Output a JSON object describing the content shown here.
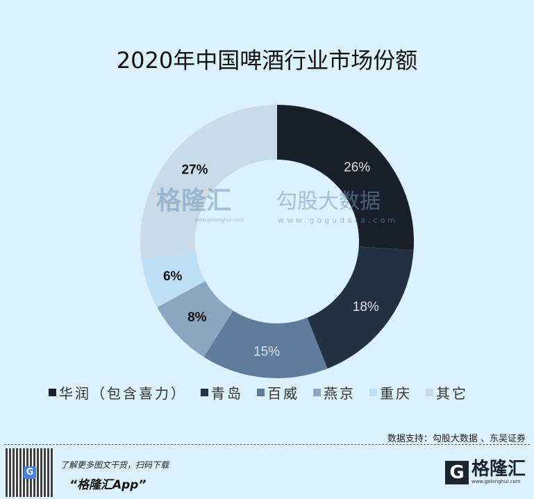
{
  "title": "2020年中国啤酒行业市场份额",
  "chart_data": {
    "type": "pie",
    "donut": true,
    "title": "2020年中国啤酒行业市场份额",
    "categories": [
      "华润（包含喜力）",
      "青岛",
      "百威",
      "燕京",
      "重庆",
      "其它"
    ],
    "values": [
      26,
      18,
      15,
      8,
      6,
      27
    ],
    "labels": [
      "26%",
      "18%",
      "15%",
      "8%",
      "6%",
      "27%"
    ],
    "colors": [
      "#17202b",
      "#243142",
      "#5f7c9c",
      "#8ca5c0",
      "#bde0f8",
      "#c8dbe6"
    ],
    "label_colors": [
      "#d8e2ec",
      "#d8e2ec",
      "#d8e2ec",
      "#111111",
      "#111111",
      "#111111"
    ],
    "legend_position": "bottom"
  },
  "watermark": {
    "brand1": "格隆汇",
    "url1": "www.gelonghui.com",
    "brand2": "勾股大数据",
    "url2": "www.gogudata.com"
  },
  "footer": {
    "source": "数据支持：勾股大数据 、东吴证券",
    "promo_line1": "了解更多图文干货，扫码下载",
    "promo_line2": "“格隆汇App”",
    "logo_name": "格隆汇",
    "logo_url": "www.gelonghui.com"
  }
}
